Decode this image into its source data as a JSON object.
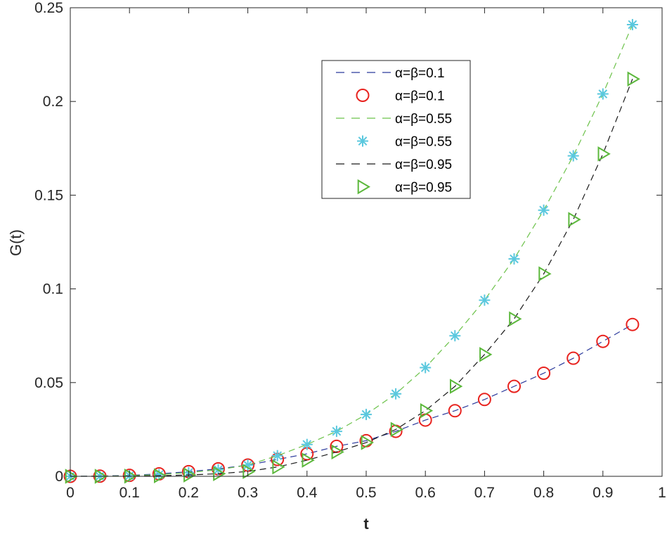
{
  "chart_data": {
    "type": "line",
    "title": "",
    "xlabel": "t",
    "ylabel": "G(t)",
    "xlim": [
      0,
      1
    ],
    "ylim": [
      0,
      0.25
    ],
    "grid": false,
    "legend_position": "upper center",
    "x_ticks": [
      "0",
      "0.1",
      "0.2",
      "0.3",
      "0.4",
      "0.5",
      "0.6",
      "0.7",
      "0.8",
      "0.9",
      "1"
    ],
    "y_ticks": [
      "0",
      "0.05",
      "0.1",
      "0.15",
      "0.2",
      "0.25"
    ],
    "x": [
      0,
      0.05,
      0.1,
      0.15,
      0.2,
      0.25,
      0.3,
      0.35,
      0.4,
      0.45,
      0.5,
      0.55,
      0.6,
      0.65,
      0.7,
      0.75,
      0.8,
      0.85,
      0.9,
      0.95
    ],
    "series": [
      {
        "name": "α=β=0.1",
        "style": "dashed-line",
        "color": "#2b3a9c",
        "marker": "none",
        "values": [
          0,
          0.0001,
          0.0005,
          0.0013,
          0.0025,
          0.004,
          0.006,
          0.009,
          0.012,
          0.016,
          0.019,
          0.024,
          0.03,
          0.035,
          0.041,
          0.048,
          0.055,
          0.063,
          0.072,
          0.081
        ]
      },
      {
        "name": "α=β=0.1",
        "style": "marker",
        "color": "#e8231f",
        "marker": "circle",
        "values": [
          0,
          0.0001,
          0.0005,
          0.0013,
          0.0025,
          0.004,
          0.006,
          0.009,
          0.012,
          0.016,
          0.019,
          0.024,
          0.03,
          0.035,
          0.041,
          0.048,
          0.055,
          0.063,
          0.072,
          0.081
        ]
      },
      {
        "name": "α=β=0.55",
        "style": "dashed-line",
        "color": "#6cc24a",
        "marker": "none",
        "values": [
          0,
          5e-05,
          0.0003,
          0.0009,
          0.002,
          0.0035,
          0.006,
          0.011,
          0.017,
          0.024,
          0.033,
          0.044,
          0.058,
          0.075,
          0.094,
          0.116,
          0.142,
          0.171,
          0.204,
          0.241
        ]
      },
      {
        "name": "α=β=0.55",
        "style": "marker",
        "color": "#5bc8de",
        "marker": "asterisk",
        "values": [
          0,
          5e-05,
          0.0003,
          0.0009,
          0.002,
          0.0035,
          0.006,
          0.011,
          0.017,
          0.024,
          0.033,
          0.044,
          0.058,
          0.075,
          0.094,
          0.116,
          0.142,
          0.171,
          0.204,
          0.241
        ]
      },
      {
        "name": "α=β=0.95",
        "style": "dashed-line",
        "color": "#1a1a1a",
        "marker": "none",
        "values": [
          0,
          1e-05,
          0.0001,
          0.0003,
          0.0007,
          0.0014,
          0.0026,
          0.005,
          0.0086,
          0.013,
          0.018,
          0.025,
          0.035,
          0.048,
          0.065,
          0.084,
          0.108,
          0.137,
          0.172,
          0.212
        ]
      },
      {
        "name": "α=β=0.95",
        "style": "marker",
        "color": "#5cb83c",
        "marker": "triangle-right",
        "values": [
          0,
          1e-05,
          0.0001,
          0.0003,
          0.0007,
          0.0014,
          0.0026,
          0.005,
          0.0086,
          0.013,
          0.018,
          0.025,
          0.035,
          0.048,
          0.065,
          0.084,
          0.108,
          0.137,
          0.172,
          0.212
        ]
      }
    ]
  },
  "legend": {
    "entries": [
      "α=β=0.1",
      "α=β=0.1",
      "α=β=0.55",
      "α=β=0.55",
      "α=β=0.95",
      "α=β=0.95"
    ]
  }
}
